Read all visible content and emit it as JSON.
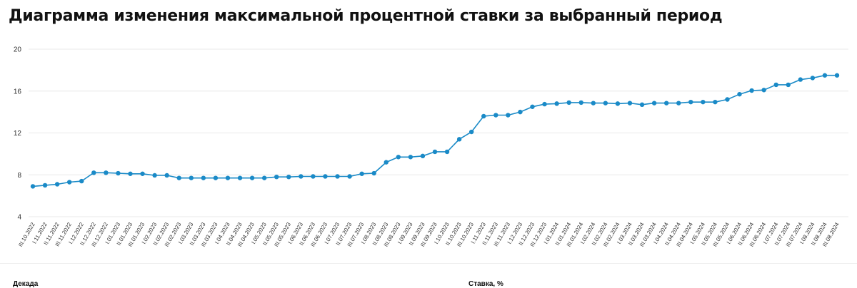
{
  "title": "Диаграмма изменения максимальной процентной ставки за выбранный период",
  "table_header": {
    "col1": "Декада",
    "col2": "Ставка, %"
  },
  "colors": {
    "line": "#1a8ac7",
    "grid": "#e8e8e8"
  },
  "chart_data": {
    "type": "line",
    "title": "Диаграмма изменения максимальной процентной ставки за выбранный период",
    "xlabel": "",
    "ylabel": "",
    "ylim": [
      4,
      20
    ],
    "yticks": [
      4,
      8,
      12,
      16,
      20
    ],
    "grid": true,
    "x_tick_labels": [
      "III.10.2022",
      "I.11.2022",
      "II.11.2022",
      "III.11.2022",
      "I.12.2022",
      "II.12.2022",
      "III.12.2022",
      "I.01.2023",
      "II.01.2023",
      "III.01.2023",
      "I.02.2023",
      "II.02.2023",
      "III.02.2023",
      "I.03.2023",
      "II.03.2023",
      "III.03.2023",
      "I.04.2023",
      "II.04.2023",
      "III.04.2023",
      "I.05.2023",
      "II.05.2023",
      "III.05.2023",
      "I.06.2023",
      "II.06.2023",
      "III.06.2023",
      "I.07.2023",
      "II.07.2023",
      "III.07.2023",
      "I.08.2023",
      "II.08.2023",
      "III.08.2023",
      "I.09.2023",
      "II.09.2023",
      "III.09.2023",
      "I.10.2023",
      "II.10.2023",
      "III.10.2023",
      "I.11.2023",
      "II.11.2023",
      "III.11.2023",
      "I.12.2023",
      "II.12.2023",
      "III.12.2023",
      "I.01.2024",
      "II.01.2024",
      "III.01.2024",
      "I.02.2024",
      "II.02.2024",
      "III.02.2024",
      "I.03.2024",
      "II.03.2024",
      "III.03.2024",
      "I.04.2024",
      "II.04.2024",
      "III.04.2024",
      "I.05.2024",
      "II.05.2024",
      "III.05.2024",
      "I.06.2024",
      "II.06.2024",
      "III.06.2024",
      "I.07.2024",
      "II.07.2024",
      "III.07.2024",
      "I.08.2024",
      "II.08.2024",
      "III.08.2024"
    ],
    "series": [
      {
        "values": [
          6.9,
          7.0,
          7.1,
          7.3,
          7.4,
          8.2,
          8.2,
          8.15,
          8.1,
          8.1,
          7.95,
          7.95,
          7.7,
          7.7,
          7.7,
          7.7,
          7.7,
          7.7,
          7.7,
          7.7,
          7.8,
          7.8,
          7.85,
          7.85,
          7.85,
          7.85,
          7.85,
          8.1,
          8.15,
          9.2,
          9.7,
          9.7,
          9.8,
          10.2,
          10.2,
          11.4,
          12.1,
          13.6,
          13.7,
          13.7,
          14.0,
          14.5,
          14.75,
          14.8,
          14.9,
          14.9,
          14.85,
          14.85,
          14.8,
          14.85,
          14.7,
          14.85,
          14.85,
          14.85,
          14.95,
          14.95,
          14.95,
          15.2,
          15.7,
          16.05,
          16.1,
          16.6,
          16.6,
          17.1,
          17.25,
          17.5,
          17.5
        ]
      }
    ]
  }
}
